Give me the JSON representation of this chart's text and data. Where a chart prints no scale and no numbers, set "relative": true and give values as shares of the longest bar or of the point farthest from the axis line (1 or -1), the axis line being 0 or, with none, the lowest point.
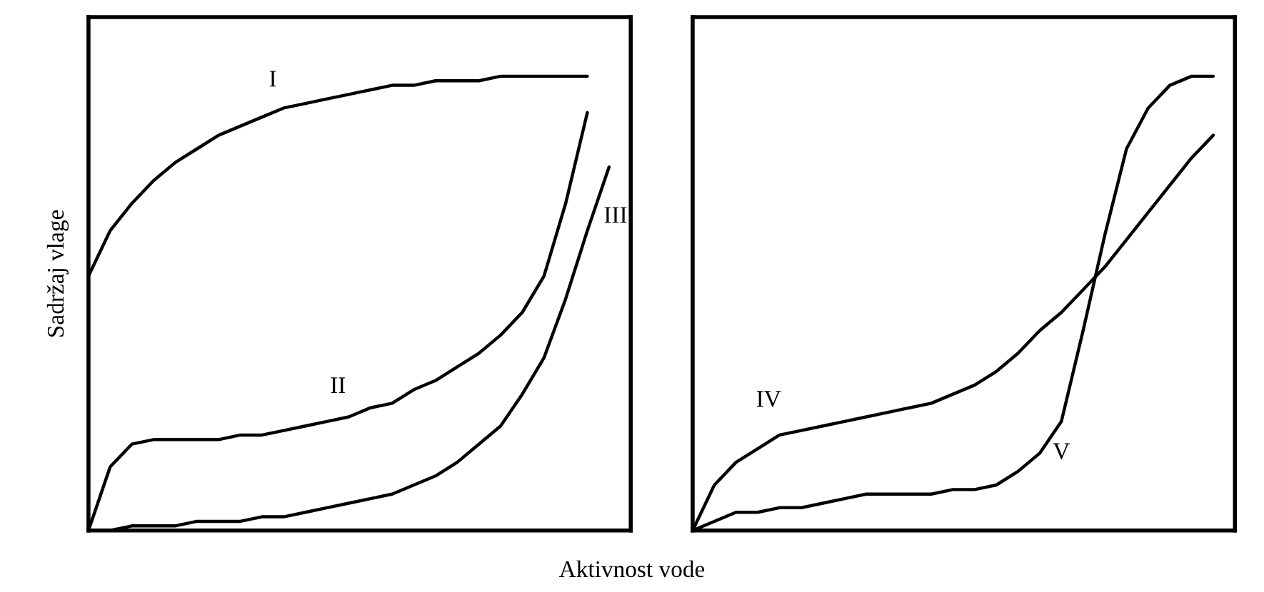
{
  "chart_data": [
    {
      "type": "line",
      "relative": true,
      "ylabel": "Sadržaj vlage",
      "xlabel": "Aktivnost vode",
      "tick_labels": false,
      "legend": false,
      "marker": "none",
      "line_style": "solid",
      "categories": [
        null,
        null,
        null,
        null,
        null,
        null,
        null,
        null,
        null,
        null,
        null,
        null,
        null,
        null,
        null,
        null,
        null,
        null,
        null,
        null,
        null,
        null,
        null,
        null,
        null
      ],
      "series": [
        {
          "name": "I",
          "color": "#000000",
          "values": [
            0.56,
            0.66,
            0.72,
            0.77,
            0.81,
            0.84,
            0.87,
            0.89,
            0.91,
            0.93,
            0.94,
            0.95,
            0.96,
            0.97,
            0.98,
            0.98,
            0.99,
            0.99,
            0.99,
            1,
            1,
            1,
            1,
            1,
            null
          ]
        },
        {
          "name": "II",
          "color": "#000000",
          "values": [
            0,
            0.14,
            0.19,
            0.2,
            0.2,
            0.2,
            0.2,
            0.21,
            0.21,
            0.22,
            0.23,
            0.24,
            0.25,
            0.27,
            0.28,
            0.31,
            0.33,
            0.36,
            0.39,
            0.43,
            0.48,
            0.56,
            0.72,
            0.92,
            null
          ]
        },
        {
          "name": "III",
          "color": "#000000",
          "values": [
            0,
            0,
            0.01,
            0.01,
            0.01,
            0.02,
            0.02,
            0.02,
            0.03,
            0.03,
            0.04,
            0.05,
            0.06,
            0.07,
            0.08,
            0.1,
            0.12,
            0.15,
            0.19,
            0.23,
            0.3,
            0.38,
            0.51,
            0.66,
            0.8
          ]
        }
      ]
    },
    {
      "type": "line",
      "relative": true,
      "tick_labels": false,
      "legend": false,
      "marker": "none",
      "line_style": "solid",
      "categories": [
        null,
        null,
        null,
        null,
        null,
        null,
        null,
        null,
        null,
        null,
        null,
        null,
        null,
        null,
        null,
        null,
        null,
        null,
        null,
        null,
        null,
        null,
        null,
        null,
        null
      ],
      "series": [
        {
          "name": "IV",
          "color": "#000000",
          "values": [
            0,
            0.1,
            0.15,
            0.18,
            0.21,
            0.22,
            0.23,
            0.24,
            0.25,
            0.26,
            0.27,
            0.28,
            0.3,
            0.32,
            0.35,
            0.39,
            0.44,
            0.48,
            0.53,
            0.58,
            0.64,
            0.7,
            0.76,
            0.82,
            0.87
          ]
        },
        {
          "name": "V",
          "color": "#000000",
          "values": [
            0,
            0.02,
            0.04,
            0.04,
            0.05,
            0.05,
            0.06,
            0.07,
            0.08,
            0.08,
            0.08,
            0.08,
            0.09,
            0.09,
            0.1,
            0.13,
            0.17,
            0.24,
            0.44,
            0.65,
            0.84,
            0.93,
            0.98,
            1,
            1
          ]
        }
      ]
    }
  ]
}
